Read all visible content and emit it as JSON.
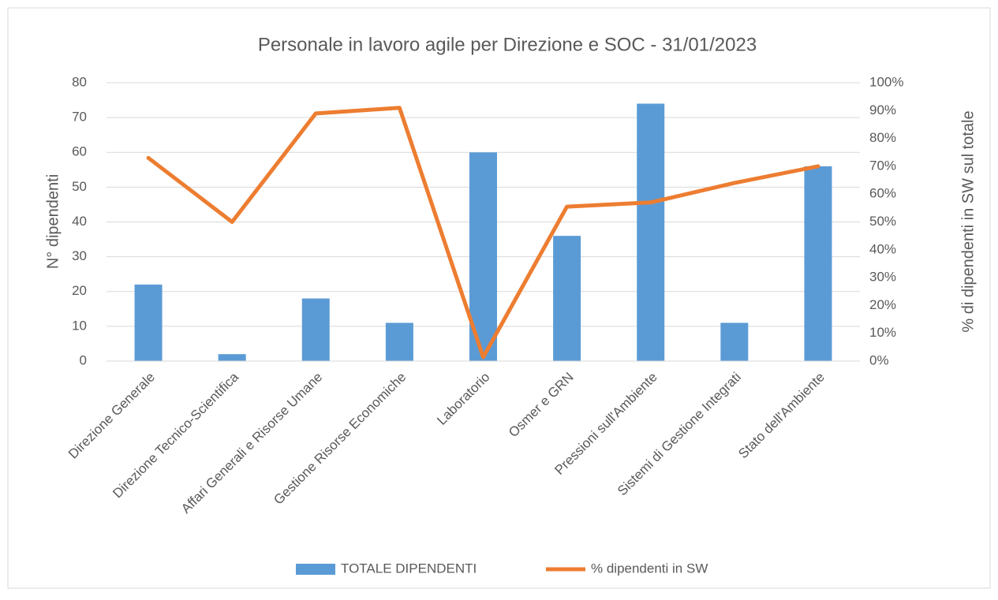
{
  "chart_data": {
    "type": "combo",
    "title": "Personale in lavoro agile per Direzione e SOC - 31/01/2023",
    "y_label": "N° dipendenti",
    "y2_label": "% di dipendenti in SW sul totale",
    "categories": [
      "Direzione Generale",
      "Direzione Tecnico-Scientifica",
      "Affari Generali e Risorse Umane",
      "Gestione Risorse Economiche",
      "Laboratorio",
      "Osmer e GRN",
      "Pressioni sull'Ambiente",
      "Sistemi di Gestione Integrati",
      "Stato dell'Ambiente"
    ],
    "series": [
      {
        "name": "TOTALE DIPENDENTI",
        "type": "bar",
        "color": "#5b9bd5",
        "values": [
          22,
          2,
          18,
          11,
          60,
          36,
          74,
          11,
          56
        ]
      },
      {
        "name": "% dipendenti in SW",
        "type": "line",
        "axis": "y2",
        "color": "#ed7d31",
        "values": [
          73,
          50,
          89,
          91,
          1.4,
          55.5,
          57,
          64,
          70
        ]
      }
    ],
    "ylim": [
      0,
      80
    ],
    "yticks": [
      0,
      10,
      20,
      30,
      40,
      50,
      60,
      70,
      80
    ],
    "y2lim": [
      0,
      100
    ],
    "y2ticks": [
      {
        "value": 0,
        "label": "0%"
      },
      {
        "value": 10,
        "label": "10%"
      },
      {
        "value": 20,
        "label": "20%"
      },
      {
        "value": 30,
        "label": "30%"
      },
      {
        "value": 40,
        "label": "40%"
      },
      {
        "value": 50,
        "label": "50%"
      },
      {
        "value": 60,
        "label": "60%"
      },
      {
        "value": 70,
        "label": "70%"
      },
      {
        "value": 80,
        "label": "80%"
      },
      {
        "value": 90,
        "label": "90%"
      },
      {
        "value": 100,
        "label": "100%"
      }
    ],
    "grid": true,
    "legend": "bottom"
  }
}
